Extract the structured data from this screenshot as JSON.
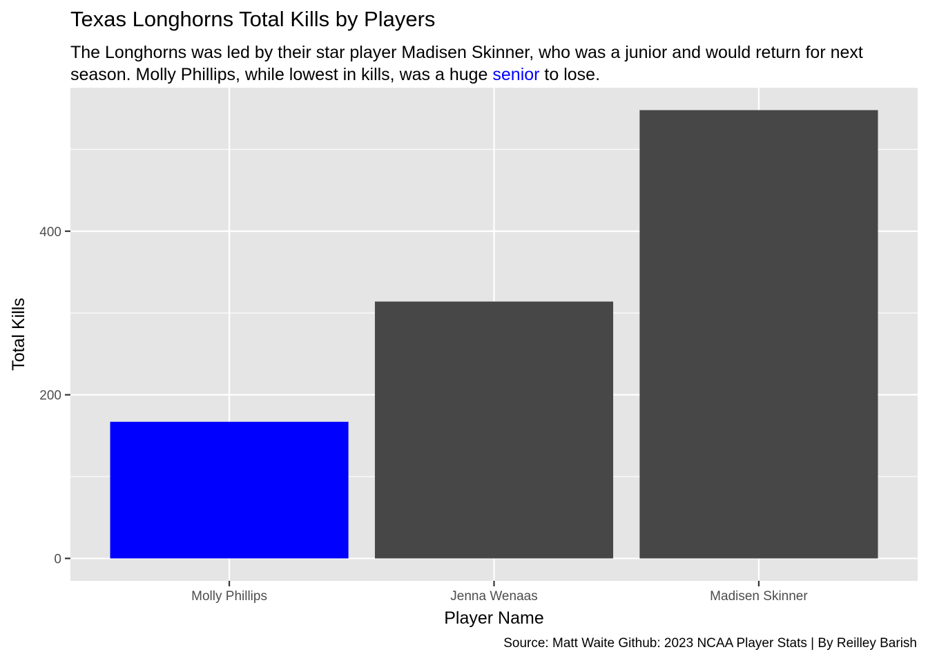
{
  "title": "Texas Longhorns Total Kills by Players",
  "subtitle": {
    "before": "The Longhorns was led by their star player Madisen Skinner, who was a junior and would return for next season. Molly Phillips, while lowest in kills, was a huge ",
    "highlight": "senior",
    "after": " to lose.",
    "highlight_color": "#0000ff"
  },
  "caption": "Source: Matt Waite Github: 2023 NCAA Player Stats | By Reilley Barish",
  "chart_data": {
    "type": "bar",
    "categories": [
      "Molly Phillips",
      "Jenna Wenaas",
      "Madisen Skinner"
    ],
    "values": [
      167,
      314,
      548
    ],
    "bar_colors": [
      "#0000ff",
      "#474747",
      "#474747"
    ],
    "xlabel": "Player Name",
    "ylabel": "Total Kills",
    "ylim": [
      -27.4,
      575.4
    ],
    "yticks": [
      0,
      200,
      400
    ],
    "grid": true,
    "panel_color": "#e5e5e5",
    "grid_color": "#ffffff",
    "legend": "none"
  }
}
